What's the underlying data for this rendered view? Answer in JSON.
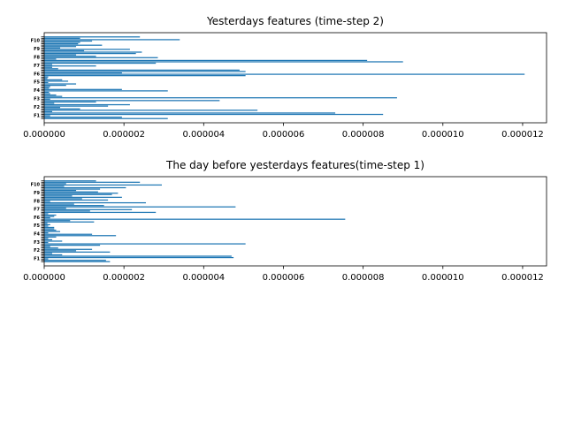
{
  "colors": {
    "bar": "#1f77b4",
    "axes": "#000000",
    "background": "#ffffff"
  },
  "chart_data": [
    {
      "type": "bar",
      "orientation": "horizontal",
      "title": "Yesterdays features (time-step 2)",
      "xlabel": "",
      "ylabel": "",
      "xlim": [
        0,
        1.26e-05
      ],
      "xticks": [
        0,
        2e-06,
        4e-06,
        6e-06,
        8e-06,
        1e-05,
        1.2e-05
      ],
      "xtick_labels": [
        "0.000000",
        "0.000002",
        "0.000004",
        "0.000006",
        "0.000008",
        "0.000010",
        "0.000012"
      ],
      "ytick_labels_visible": [
        "F1",
        "F2",
        "F3",
        "F4",
        "F5",
        "F6",
        "F7",
        "F8",
        "F9",
        "F10"
      ],
      "grid": false,
      "values": [
        3.1e-06,
        1.95e-06,
        1.5e-07,
        8.5e-06,
        7.3e-06,
        2e-07,
        5.35e-06,
        9e-07,
        4e-07,
        1.6e-06,
        2.15e-06,
        2.5e-07,
        1.3e-06,
        4.4e-06,
        1.5e-07,
        8.85e-06,
        4.5e-07,
        3e-07,
        1.5e-07,
        1.2e-07,
        3.1e-06,
        1.95e-06,
        1.2e-07,
        1.5e-07,
        5.5e-07,
        8e-07,
        1e-07,
        6e-07,
        4.5e-07,
        8e-08,
        1e-07,
        5.05e-06,
        1.205e-05,
        1.95e-06,
        5.05e-06,
        4.9e-06,
        3.5e-07,
        2e-07,
        1.3e-06,
        2e-07,
        2.8e-06,
        9e-06,
        8.1e-06,
        3e-07,
        2.85e-06,
        1.3e-06,
        8e-07,
        2.3e-06,
        2.45e-06,
        1e-06,
        2.15e-06,
        4e-07,
        8e-07,
        1.45e-06,
        8.5e-07,
        9e-07,
        1.2e-06,
        3.4e-06,
        9e-07,
        2.4e-06
      ]
    },
    {
      "type": "bar",
      "orientation": "horizontal",
      "title": "The day before yesterdays features(time-step 1)",
      "xlabel": "",
      "ylabel": "",
      "xlim": [
        0,
        1.26e-05
      ],
      "xticks": [
        0,
        2e-06,
        4e-06,
        6e-06,
        8e-06,
        1e-05,
        1.2e-05
      ],
      "xtick_labels": [
        "0.000000",
        "0.000002",
        "0.000004",
        "0.000006",
        "0.000008",
        "0.000010",
        "0.000012"
      ],
      "ytick_labels_visible": [
        "F1",
        "F2",
        "F3",
        "F4",
        "F5",
        "F6",
        "F7",
        "F8",
        "F9",
        "F10"
      ],
      "grid": false,
      "values": [
        1.65e-06,
        1.55e-06,
        1e-07,
        4.75e-06,
        4.7e-06,
        4.5e-07,
        2e-07,
        1.65e-06,
        8e-07,
        1.2e-06,
        3.5e-07,
        1.5e-07,
        1.4e-06,
        5.05e-06,
        1e-07,
        4.5e-07,
        2e-07,
        1e-07,
        3e-07,
        1.8e-06,
        1.2e-06,
        1e-07,
        4e-07,
        3e-07,
        2.5e-07,
        2.5e-07,
        1e-07,
        1.5e-07,
        8e-08,
        1.25e-06,
        6.5e-07,
        7.55e-06,
        1.5e-07,
        2.5e-07,
        3e-07,
        1e-07,
        2.8e-06,
        1.15e-06,
        2.2e-06,
        5.5e-07,
        4.8e-06,
        1.5e-06,
        7.5e-07,
        2.55e-06,
        1.5e-07,
        1.6e-06,
        9.5e-07,
        1.95e-06,
        7e-07,
        1.7e-06,
        1.85e-06,
        1.35e-06,
        8e-07,
        1.4e-06,
        2.05e-06,
        5e-07,
        2.95e-06,
        5.5e-07,
        2.4e-06,
        1.3e-06
      ]
    }
  ]
}
